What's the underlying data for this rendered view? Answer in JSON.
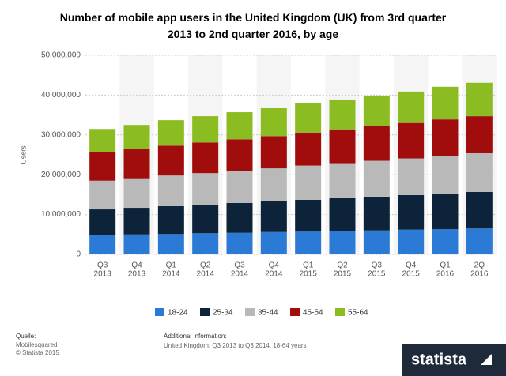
{
  "chart_data": {
    "type": "stacked_bar",
    "title": "Number of mobile app users in the United Kingdom (UK) from 3rd quarter 2013 to 2nd quarter 2016, by age",
    "y_label": "Users",
    "categories": [
      [
        "Q3",
        "2013"
      ],
      [
        "Q4",
        "2013"
      ],
      [
        "Q1",
        "2014"
      ],
      [
        "Q2",
        "2014"
      ],
      [
        "Q3",
        "2014"
      ],
      [
        "Q4",
        "2014"
      ],
      [
        "Q1",
        "2015"
      ],
      [
        "Q2",
        "2015"
      ],
      [
        "Q3",
        "2015"
      ],
      [
        "Q4",
        "2015"
      ],
      [
        "Q1",
        "2016"
      ],
      [
        "2Q",
        "2016"
      ]
    ],
    "series": [
      {
        "name": "18-24",
        "color": "#2b7bd6",
        "values": [
          4800000,
          5000000,
          5100000,
          5300000,
          5400000,
          5600000,
          5700000,
          5900000,
          6000000,
          6200000,
          6300000,
          6500000
        ]
      },
      {
        "name": "25-34",
        "color": "#0d233a",
        "values": [
          6500000,
          6700000,
          7000000,
          7200000,
          7500000,
          7700000,
          8000000,
          8200000,
          8500000,
          8700000,
          9000000,
          9200000
        ]
      },
      {
        "name": "35-44",
        "color": "#b9b9b9",
        "values": [
          7200000,
          7400000,
          7700000,
          7900000,
          8100000,
          8300000,
          8600000,
          8800000,
          9000000,
          9200000,
          9500000,
          9700000
        ]
      },
      {
        "name": "45-54",
        "color": "#a10d0d",
        "values": [
          7100000,
          7300000,
          7500000,
          7700000,
          7900000,
          8100000,
          8300000,
          8500000,
          8700000,
          8900000,
          9100000,
          9300000
        ]
      },
      {
        "name": "55-64",
        "color": "#8bbc21",
        "values": [
          5900000,
          6100000,
          6400000,
          6600000,
          6800000,
          7000000,
          7300000,
          7500000,
          7700000,
          7900000,
          8200000,
          8400000
        ]
      }
    ],
    "ylim": [
      0,
      50000000
    ],
    "yticks": [
      0,
      {
        "value": 10000000,
        "label": "10,000,000"
      },
      {
        "value": 20000000,
        "label": "20,000,000"
      },
      {
        "value": 30000000,
        "label": "30,000,000"
      },
      {
        "value": 40000000,
        "label": "40,000,000"
      },
      {
        "value": 50000000,
        "label": "50,000,000"
      }
    ],
    "grid": true
  },
  "footer": {
    "source_heading": "Quelle:",
    "source": "Mobilesquared",
    "copyright": "© Statista 2015",
    "info_heading": "Additional Information:",
    "info": "United Kingdom; Q3 2013 to Q3 2014, 18-64 years",
    "logo": "statista"
  }
}
